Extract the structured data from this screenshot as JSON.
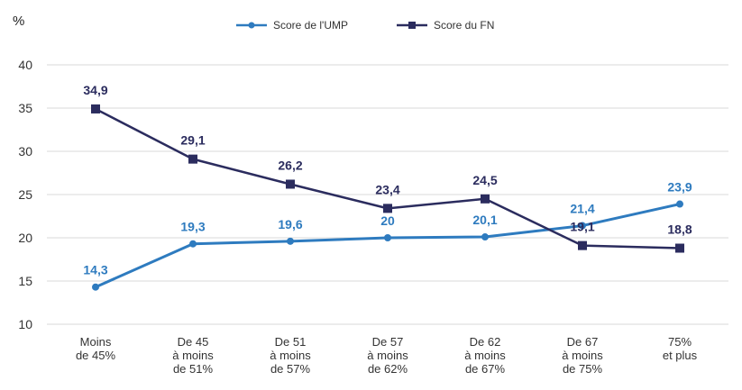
{
  "chart_data": {
    "type": "line",
    "title": "",
    "ylabel": "%",
    "xlabel": "",
    "ylim": [
      10,
      40
    ],
    "yticks": [
      10,
      15,
      20,
      25,
      30,
      35,
      40
    ],
    "grid": true,
    "legend_position": "top",
    "categories": [
      [
        "Moins",
        "de 45%"
      ],
      [
        "De 45",
        "à moins",
        "de 51%"
      ],
      [
        "De 51",
        "à moins",
        "de 57%"
      ],
      [
        "De 57",
        "à moins",
        "de 62%"
      ],
      [
        "De 62",
        "à moins",
        "de 67%"
      ],
      [
        "De 67",
        "à moins",
        "de 75%"
      ],
      [
        "75%",
        "et plus"
      ]
    ],
    "series": [
      {
        "name": "Score de l'UMP",
        "color": "#2e7bbf",
        "marker": "circle",
        "values": [
          14.3,
          19.3,
          19.6,
          20,
          20.1,
          21.4,
          23.9
        ],
        "labels": [
          "14,3",
          "19,3",
          "19,6",
          "20",
          "20,1",
          "21,4",
          "23,9"
        ]
      },
      {
        "name": "Score du FN",
        "color": "#2b2c5e",
        "marker": "square",
        "values": [
          34.9,
          29.1,
          26.2,
          23.4,
          24.5,
          19.1,
          18.8
        ],
        "labels": [
          "34,9",
          "29,1",
          "26,2",
          "23,4",
          "24,5",
          "19,1",
          "18,8"
        ]
      }
    ]
  }
}
